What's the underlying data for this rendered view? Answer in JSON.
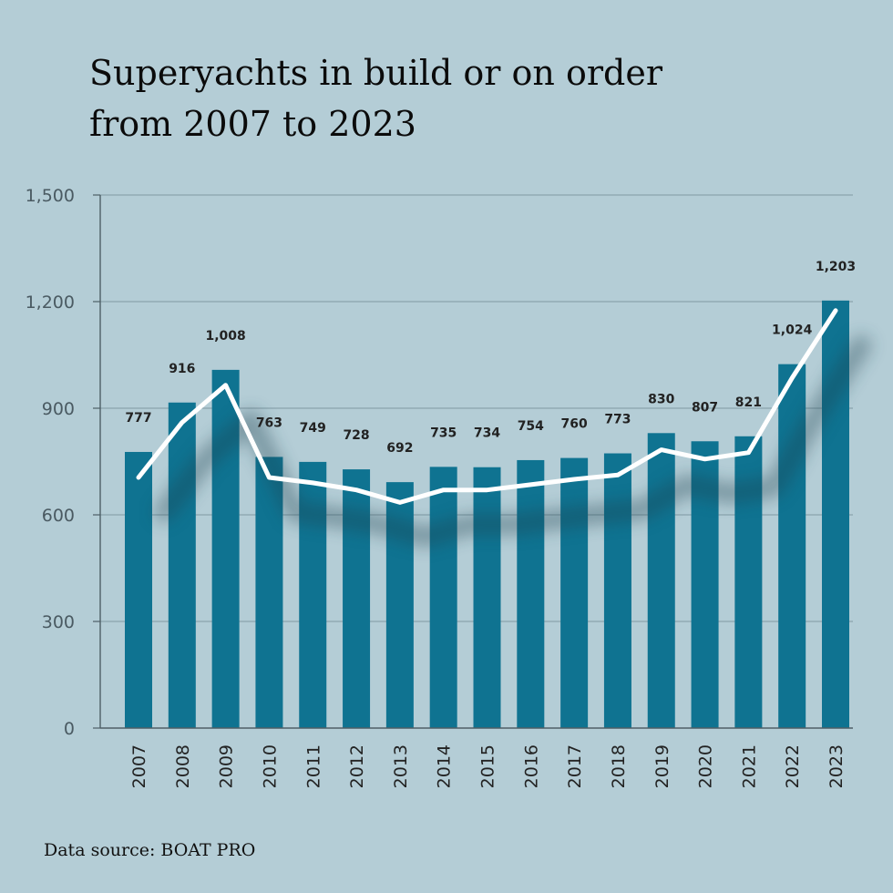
{
  "chart_data": {
    "type": "bar",
    "title": "Superyachts in build or on order from 2007 to 2023",
    "title_lines": [
      "Superyachts in build or on order",
      "from 2007 to 2023"
    ],
    "categories": [
      "2007",
      "2008",
      "2009",
      "2010",
      "2011",
      "2012",
      "2013",
      "2014",
      "2015",
      "2016",
      "2017",
      "2018",
      "2019",
      "2020",
      "2021",
      "2022",
      "2023"
    ],
    "series": [
      {
        "name": "Superyachts in build or on order",
        "type": "bar",
        "values": [
          777,
          916,
          1008,
          763,
          749,
          728,
          692,
          735,
          734,
          754,
          760,
          773,
          830,
          807,
          821,
          1024,
          1203
        ]
      },
      {
        "name": "Trend line",
        "type": "line",
        "values": [
          705,
          860,
          965,
          705,
          690,
          670,
          635,
          670,
          670,
          685,
          700,
          712,
          783,
          757,
          775,
          985,
          1175
        ]
      }
    ],
    "data_labels": [
      "777",
      "916",
      "1,008",
      "763",
      "749",
      "728",
      "692",
      "735",
      "734",
      "754",
      "760",
      "773",
      "830",
      "807",
      "821",
      "1,024",
      "1,203"
    ],
    "yticks": [
      0,
      300,
      600,
      900,
      1200,
      1500
    ],
    "ytick_labels": [
      "0",
      "300",
      "600",
      "900",
      "1,200",
      "1,500"
    ],
    "ylim": [
      0,
      1500
    ],
    "grid": true,
    "xlabel": "",
    "ylabel": "",
    "source": "Data source: BOAT PRO",
    "colors": {
      "bar": "#0f7391",
      "line": "#ffffff",
      "grid": "#7f99a3",
      "axis": "#4e5f66",
      "shadow": "#1a3f4e"
    }
  }
}
